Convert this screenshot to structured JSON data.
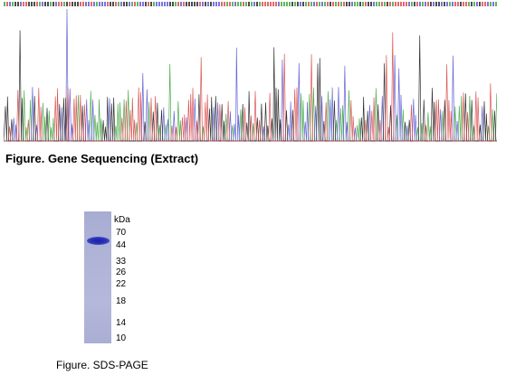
{
  "sequencing": {
    "title": "Figure. Gene Sequencing (Extract)",
    "trace_colors": {
      "A": "#2e9e2e",
      "C": "#4a4acf",
      "G": "#111111",
      "T": "#d63a3a"
    }
  },
  "sds_page": {
    "unit": "kDa",
    "markers": [
      "70",
      "44",
      "33",
      "26",
      "22",
      "18",
      "14",
      "10"
    ],
    "lane_color": "#aeb2d6",
    "band_color": "#2a31b8",
    "caption": "Figure. SDS-PAGE"
  }
}
